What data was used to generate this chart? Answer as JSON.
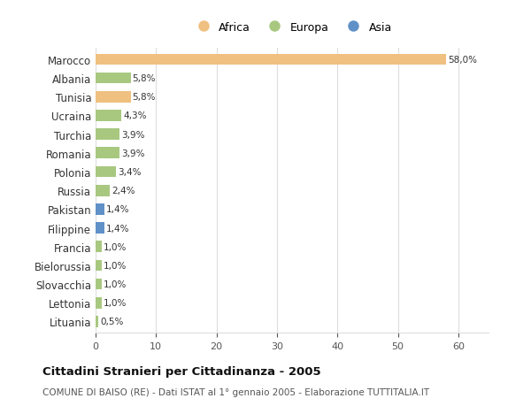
{
  "countries": [
    "Marocco",
    "Albania",
    "Tunisia",
    "Ucraina",
    "Turchia",
    "Romania",
    "Polonia",
    "Russia",
    "Pakistan",
    "Filippine",
    "Francia",
    "Bielorussia",
    "Slovacchia",
    "Lettonia",
    "Lituania"
  ],
  "values": [
    58.0,
    5.8,
    5.8,
    4.3,
    3.9,
    3.9,
    3.4,
    2.4,
    1.4,
    1.4,
    1.0,
    1.0,
    1.0,
    1.0,
    0.5
  ],
  "labels": [
    "58,0%",
    "5,8%",
    "5,8%",
    "4,3%",
    "3,9%",
    "3,9%",
    "3,4%",
    "2,4%",
    "1,4%",
    "1,4%",
    "1,0%",
    "1,0%",
    "1,0%",
    "1,0%",
    "0,5%"
  ],
  "continents": [
    "Africa",
    "Europa",
    "Africa",
    "Europa",
    "Europa",
    "Europa",
    "Europa",
    "Europa",
    "Asia",
    "Asia",
    "Europa",
    "Europa",
    "Europa",
    "Europa",
    "Europa"
  ],
  "colors": {
    "Africa": "#F0C080",
    "Europa": "#A8C880",
    "Asia": "#6090C8"
  },
  "legend_labels": [
    "Africa",
    "Europa",
    "Asia"
  ],
  "legend_colors": [
    "#F0C080",
    "#A8C880",
    "#6090C8"
  ],
  "title": "Cittadini Stranieri per Cittadinanza - 2005",
  "subtitle": "COMUNE DI BAISO (RE) - Dati ISTAT al 1° gennaio 2005 - Elaborazione TUTTITALIA.IT",
  "xlim": [
    0,
    65
  ],
  "background_color": "#ffffff",
  "grid_color": "#dddddd",
  "bar_height": 0.6
}
